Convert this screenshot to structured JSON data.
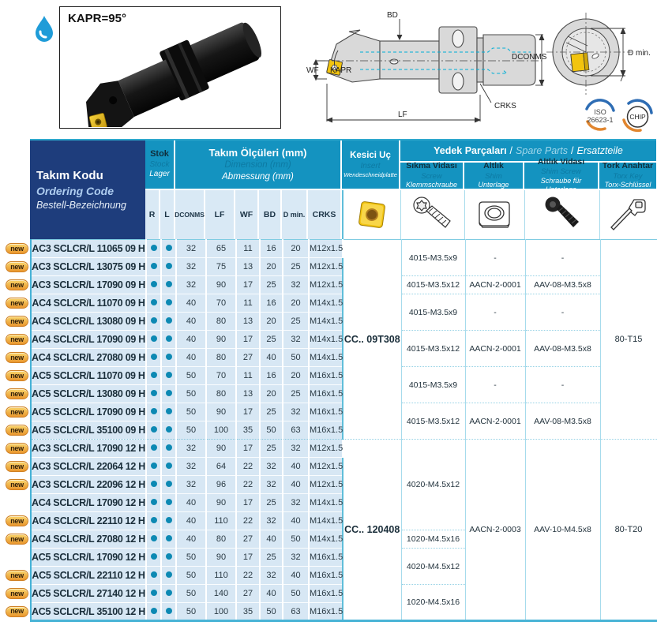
{
  "page": {
    "kapr_label": "KAPR=95°"
  },
  "drawing_labels": {
    "bd": "BD",
    "wf": "WF",
    "kapr": "KAPR",
    "dconms": "DCONMS",
    "crks": "CRKS",
    "lf": "LF",
    "d_min": "D min."
  },
  "logos": {
    "iso_line1": "ISO",
    "iso_line2": "26623-1",
    "chip": "CHIP"
  },
  "table": {
    "ordering_code_header": {
      "tr": "Takım Kodu",
      "en": "Ordering Code",
      "de": "Bestell-Bezeichnung"
    },
    "stock_header": {
      "tr": "Stok",
      "en": "Stock",
      "de": "Lager"
    },
    "dimensions_header": {
      "tr": "Takım Ölçüleri (mm)",
      "en": "Dimension (mm)",
      "de": "Abmessung (mm)"
    },
    "insert_header": {
      "tr": "Kesici Uç",
      "en": "Insert",
      "de": "Wendeschneidplatte"
    },
    "spare_parts_header": {
      "tr": "Yedek Parçaları",
      "en": "Spare Parts",
      "de": "Ersatzteile",
      "separator": "/"
    },
    "spare_columns": [
      {
        "tr": "Sıkma Vidası",
        "en": "Screw",
        "de": "Klemmschraube"
      },
      {
        "tr": "Altlık",
        "en": "Shim",
        "de": "Unterlage"
      },
      {
        "tr": "Altlık Vidası",
        "en": "Shim Screw",
        "de": "Schraube für Unterlage"
      },
      {
        "tr": "Tork Anahtar",
        "en": "Torx Key",
        "de": "Torx-Schlüssel"
      }
    ],
    "dim_columns": [
      "R",
      "L",
      "DCONMS",
      "LF",
      "WF",
      "BD",
      "D min.",
      "CRKS"
    ],
    "badge_label": "new",
    "rows": [
      {
        "new": true,
        "code": "AC3 SCLCR/L 11065 09 H",
        "r": true,
        "l": true,
        "dconms": 32,
        "lf": 65,
        "wf": 11,
        "bd": 16,
        "d_min": 20,
        "crks": "M12x1.5"
      },
      {
        "new": true,
        "code": "AC3 SCLCR/L 13075 09 H",
        "r": true,
        "l": true,
        "dconms": 32,
        "lf": 75,
        "wf": 13,
        "bd": 20,
        "d_min": 25,
        "crks": "M12x1.5"
      },
      {
        "new": true,
        "code": "AC3 SCLCR/L 17090 09 H",
        "r": true,
        "l": true,
        "dconms": 32,
        "lf": 90,
        "wf": 17,
        "bd": 25,
        "d_min": 32,
        "crks": "M12x1.5"
      },
      {
        "new": true,
        "code": "AC4 SCLCR/L 11070 09 H",
        "r": true,
        "l": true,
        "dconms": 40,
        "lf": 70,
        "wf": 11,
        "bd": 16,
        "d_min": 20,
        "crks": "M14x1.5"
      },
      {
        "new": true,
        "code": "AC4 SCLCR/L 13080 09 H",
        "r": true,
        "l": true,
        "dconms": 40,
        "lf": 80,
        "wf": 13,
        "bd": 20,
        "d_min": 25,
        "crks": "M14x1.5"
      },
      {
        "new": true,
        "code": "AC4 SCLCR/L 17090 09 H",
        "r": true,
        "l": true,
        "dconms": 40,
        "lf": 90,
        "wf": 17,
        "bd": 25,
        "d_min": 32,
        "crks": "M14x1.5"
      },
      {
        "new": true,
        "code": "AC4 SCLCR/L 27080 09 H",
        "r": true,
        "l": true,
        "dconms": 40,
        "lf": 80,
        "wf": 27,
        "bd": 40,
        "d_min": 50,
        "crks": "M14x1.5"
      },
      {
        "new": true,
        "code": "AC5 SCLCR/L 11070 09 H",
        "r": true,
        "l": true,
        "dconms": 50,
        "lf": 70,
        "wf": 11,
        "bd": 16,
        "d_min": 20,
        "crks": "M16x1.5"
      },
      {
        "new": true,
        "code": "AC5 SCLCR/L 13080 09 H",
        "r": true,
        "l": true,
        "dconms": 50,
        "lf": 80,
        "wf": 13,
        "bd": 20,
        "d_min": 25,
        "crks": "M16x1.5"
      },
      {
        "new": true,
        "code": "AC5 SCLCR/L 17090 09 H",
        "r": true,
        "l": true,
        "dconms": 50,
        "lf": 90,
        "wf": 17,
        "bd": 25,
        "d_min": 32,
        "crks": "M16x1.5"
      },
      {
        "new": true,
        "code": "AC5 SCLCR/L 35100 09 H",
        "r": true,
        "l": true,
        "dconms": 50,
        "lf": 100,
        "wf": 35,
        "bd": 50,
        "d_min": 63,
        "crks": "M16x1.5"
      },
      {
        "new": true,
        "code": "AC3 SCLCR/L 17090 12 H",
        "r": true,
        "l": true,
        "dconms": 32,
        "lf": 90,
        "wf": 17,
        "bd": 25,
        "d_min": 32,
        "crks": "M12x1.5"
      },
      {
        "new": true,
        "code": "AC3 SCLCR/L 22064 12 H",
        "r": true,
        "l": true,
        "dconms": 32,
        "lf": 64,
        "wf": 22,
        "bd": 32,
        "d_min": 40,
        "crks": "M12x1.5"
      },
      {
        "new": true,
        "code": "AC3 SCLCR/L 22096 12 H",
        "r": true,
        "l": true,
        "dconms": 32,
        "lf": 96,
        "wf": 22,
        "bd": 32,
        "d_min": 40,
        "crks": "M12x1.5"
      },
      {
        "new": false,
        "code": "AC4 SCLCR/L 17090 12 H",
        "r": true,
        "l": true,
        "dconms": 40,
        "lf": 90,
        "wf": 17,
        "bd": 25,
        "d_min": 32,
        "crks": "M14x1.5"
      },
      {
        "new": true,
        "code": "AC4 SCLCR/L 22110 12 H",
        "r": true,
        "l": true,
        "dconms": 40,
        "lf": 110,
        "wf": 22,
        "bd": 32,
        "d_min": 40,
        "crks": "M14x1.5"
      },
      {
        "new": true,
        "code": "AC4 SCLCR/L 27080 12 H",
        "r": true,
        "l": true,
        "dconms": 40,
        "lf": 80,
        "wf": 27,
        "bd": 40,
        "d_min": 50,
        "crks": "M14x1.5"
      },
      {
        "new": false,
        "code": "AC5 SCLCR/L 17090 12 H",
        "r": true,
        "l": true,
        "dconms": 50,
        "lf": 90,
        "wf": 17,
        "bd": 25,
        "d_min": 32,
        "crks": "M16x1.5"
      },
      {
        "new": true,
        "code": "AC5 SCLCR/L 22110 12 H",
        "r": true,
        "l": true,
        "dconms": 50,
        "lf": 110,
        "wf": 22,
        "bd": 32,
        "d_min": 40,
        "crks": "M16x1.5"
      },
      {
        "new": true,
        "code": "AC5 SCLCR/L 27140 12 H",
        "r": true,
        "l": true,
        "dconms": 50,
        "lf": 140,
        "wf": 27,
        "bd": 40,
        "d_min": 50,
        "crks": "M16x1.5"
      },
      {
        "new": true,
        "code": "AC5 SCLCR/L 35100 12 H",
        "r": true,
        "l": true,
        "dconms": 50,
        "lf": 100,
        "wf": 35,
        "bd": 50,
        "d_min": 63,
        "crks": "M16x1.5"
      }
    ],
    "insert_col": [
      {
        "start": 0,
        "span": 11,
        "value": "CC.. 09T308"
      },
      {
        "start": 11,
        "span": 10,
        "value": "CC.. 120408"
      }
    ],
    "screw_col": [
      {
        "start": 0,
        "span": 2,
        "value": "4015-M3.5x9"
      },
      {
        "start": 2,
        "span": 1,
        "value": "4015-M3.5x12"
      },
      {
        "start": 3,
        "span": 2,
        "value": "4015-M3.5x9"
      },
      {
        "start": 5,
        "span": 2,
        "value": "4015-M3.5x12"
      },
      {
        "start": 7,
        "span": 2,
        "value": "4015-M3.5x9"
      },
      {
        "start": 9,
        "span": 2,
        "value": "4015-M3.5x12"
      },
      {
        "start": 11,
        "span": 5,
        "value": "4020-M4.5x12"
      },
      {
        "start": 16,
        "span": 1,
        "value": "1020-M4.5x16"
      },
      {
        "start": 17,
        "span": 2,
        "value": "4020-M4.5x12"
      },
      {
        "start": 19,
        "span": 2,
        "value": "1020-M4.5x16"
      }
    ],
    "shim_col": [
      {
        "start": 0,
        "span": 2,
        "value": "-"
      },
      {
        "start": 2,
        "span": 1,
        "value": "AACN-2-0001"
      },
      {
        "start": 3,
        "span": 2,
        "value": "-"
      },
      {
        "start": 5,
        "span": 2,
        "value": "AACN-2-0001"
      },
      {
        "start": 7,
        "span": 2,
        "value": "-"
      },
      {
        "start": 9,
        "span": 2,
        "value": "AACN-2-0001"
      },
      {
        "start": 11,
        "span": 10,
        "value": "AACN-2-0003"
      }
    ],
    "shim_screw_col": [
      {
        "start": 0,
        "span": 2,
        "value": "-"
      },
      {
        "start": 2,
        "span": 1,
        "value": "AAV-08-M3.5x8"
      },
      {
        "start": 3,
        "span": 2,
        "value": "-"
      },
      {
        "start": 5,
        "span": 2,
        "value": "AAV-08-M3.5x8"
      },
      {
        "start": 7,
        "span": 2,
        "value": "-"
      },
      {
        "start": 9,
        "span": 2,
        "value": "AAV-08-M3.5x8"
      },
      {
        "start": 11,
        "span": 10,
        "value": "AAV-10-M4.5x8"
      }
    ],
    "torx_col": [
      {
        "start": 0,
        "span": 11,
        "value": "80-T15"
      },
      {
        "start": 11,
        "span": 10,
        "value": "80-T20"
      }
    ]
  },
  "colors": {
    "teal_header": "#1493c0",
    "dark_blue": "#1e3d7c",
    "row_blue": "#d7e7f4",
    "badge_orange": "#e9962e",
    "bullet_teal": "#0d89b3",
    "insert_gold": "#f2c40f"
  }
}
